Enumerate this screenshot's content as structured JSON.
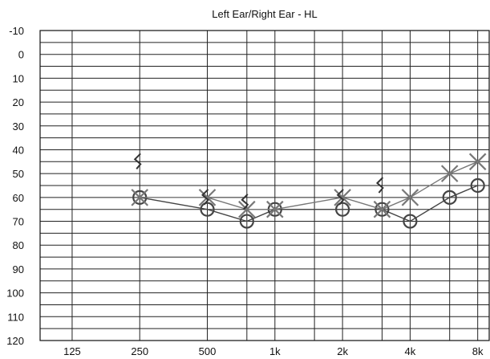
{
  "chart_data": {
    "type": "line",
    "title": "Left Ear/Right Ear - HL",
    "xlabel": "",
    "ylabel": "",
    "x_tick_labels": [
      "125",
      "250",
      "500",
      "1k",
      "2k",
      "4k",
      "8k"
    ],
    "x_tick_values": [
      125,
      250,
      500,
      1000,
      2000,
      4000,
      8000
    ],
    "x_scale": "log2",
    "xlim": [
      90,
      9000
    ],
    "y_tick_labels": [
      "-10",
      "0",
      "10",
      "20",
      "30",
      "40",
      "50",
      "60",
      "70",
      "80",
      "90",
      "100",
      "110",
      "120"
    ],
    "ylim": [
      -10,
      120
    ],
    "y_inverted": true,
    "grid": true,
    "x_intermediate_grid_values": [
      750,
      1500,
      3000,
      6000
    ],
    "series": [
      {
        "marker": "circle",
        "color": "#444444",
        "x": [
          250,
          500,
          750,
          1000,
          2000,
          3000,
          4000,
          6000,
          8000
        ],
        "values": [
          60,
          65,
          70,
          65,
          65,
          65,
          70,
          60,
          55
        ]
      },
      {
        "marker": "x",
        "color": "#777777",
        "x": [
          250,
          500,
          750,
          1000,
          2000,
          3000,
          4000,
          6000,
          8000
        ],
        "values": [
          60,
          60,
          65,
          65,
          60,
          65,
          60,
          50,
          45
        ]
      }
    ],
    "bone_markers": [
      {
        "marker": "bracket",
        "x": 250,
        "value": 45
      },
      {
        "marker": "bracket",
        "x": 500,
        "value": 60
      },
      {
        "marker": "bracket",
        "x": 750,
        "value": 62
      },
      {
        "marker": "bracket",
        "x": 2000,
        "value": 60
      },
      {
        "marker": "bracket",
        "x": 3000,
        "value": 55
      }
    ]
  }
}
